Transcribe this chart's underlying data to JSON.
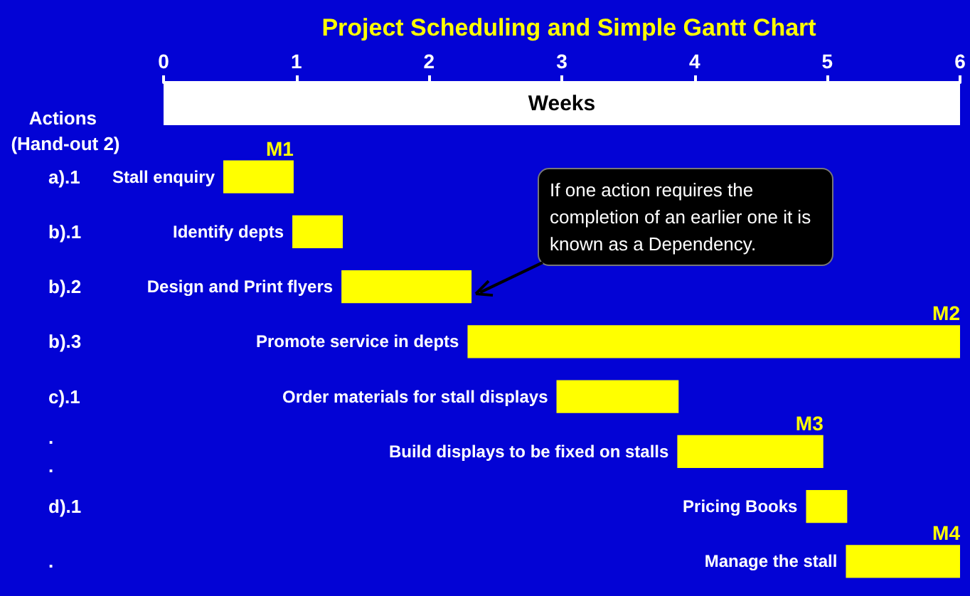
{
  "chart_data": {
    "type": "bar",
    "orientation": "horizontal",
    "title": "Project Scheduling and Simple Gantt Chart",
    "xlabel": "Weeks",
    "ylabel": "Actions (Hand-out 2)",
    "categories": [
      "Stall enquiry",
      "Identify depts",
      "Design and Print flyers",
      "Promote service in depts",
      "Order materials for stall displays",
      "Build displays to be fixed on stalls",
      "Pricing Books",
      "Manage the stall"
    ],
    "base": [
      0.45,
      0.97,
      1.34,
      2.29,
      2.96,
      3.87,
      4.84,
      5.14
    ],
    "values": [
      0.53,
      0.38,
      0.98,
      3.71,
      0.92,
      1.1,
      0.31,
      0.86
    ],
    "color": "#ffff00",
    "xlim": [
      0,
      6
    ],
    "xticks": [
      0,
      1,
      2,
      3,
      4,
      5,
      6
    ],
    "grid": false,
    "annotations": [
      "a).1",
      "b).1",
      "b).2",
      "b).3",
      "c).1",
      ".\n.",
      "d).1",
      ".",
      {
        "text": "M1",
        "x": 0.98,
        "y": "Stall enquiry"
      },
      {
        "text": "M2",
        "x": 6,
        "y": "Promote service in depts"
      },
      {
        "text": "M3",
        "x": 4.97,
        "y": "Build displays to be fixed on stalls"
      },
      {
        "text": "M4",
        "x": 6,
        "y": "Manage the stall"
      },
      {
        "text": "If one action requires the completion of an earlier one it is known as a Dependency.",
        "x": 2.32,
        "y": "Design and Print flyers"
      }
    ]
  }
}
